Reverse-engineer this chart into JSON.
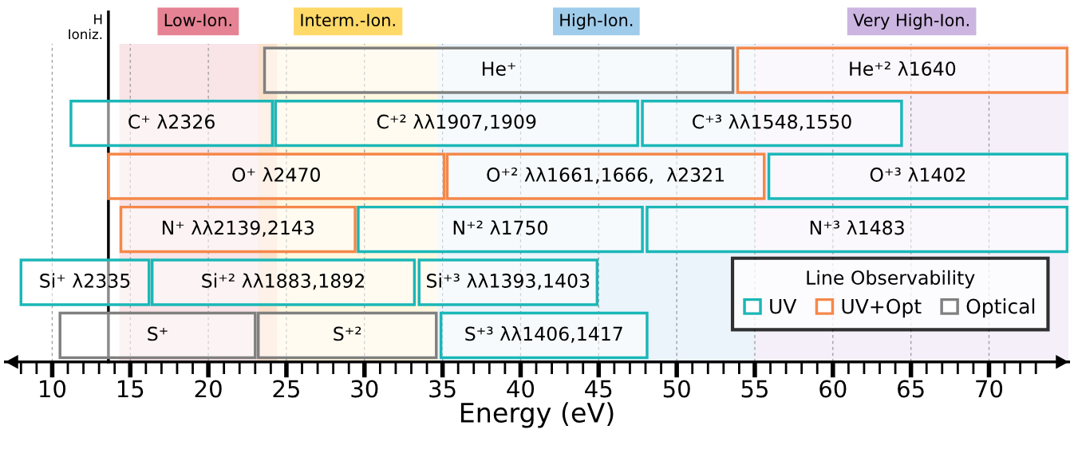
{
  "chart_data": {
    "type": "bar",
    "orientation": "horizontal",
    "xlabel": "Energy (eV)",
    "categories": [
      null,
      null,
      null,
      null,
      null,
      null
    ],
    "series": [
      {
        "name": "UV",
        "color": "#1bb7b7",
        "base": [
          null,
          11.2,
          null,
          null,
          8.0,
          34.9
        ],
        "values": [
          null,
          12.9,
          null,
          null,
          8.2,
          13.2
        ],
        "value_labels": [
          null,
          "C⁺ λ2326",
          null,
          null,
          "Si⁺ λ2335",
          "S⁺³ λλ1406,1417"
        ]
      },
      {
        "color": "#1bb7b7",
        "base": [
          null,
          24.3,
          55.9,
          29.6,
          16.4,
          null
        ],
        "values": [
          null,
          23.2,
          19.1,
          18.2,
          16.8,
          null
        ],
        "value_labels": [
          null,
          "C⁺² λλ1907,1909",
          "O⁺³ λ1402",
          "N⁺² λ1750",
          "Si⁺² λλ1883,1892",
          null
        ]
      },
      {
        "color": "#1bb7b7",
        "base": [
          null,
          47.8,
          null,
          48.1,
          33.5,
          null
        ],
        "values": [
          null,
          16.6,
          null,
          26.9,
          11.4,
          null
        ],
        "value_labels": [
          null,
          "C⁺³ λλ1548,1550",
          null,
          "N⁺³ λ1483",
          "Si⁺³ λλ1393,1403",
          null
        ]
      },
      {
        "name": "UV+Opt",
        "color": "#f5884a",
        "base": [
          53.9,
          null,
          13.6,
          14.4,
          null,
          null
        ],
        "values": [
          21.1,
          null,
          21.5,
          15.0,
          null,
          null
        ],
        "value_labels": [
          "He⁺² λ1640",
          null,
          "O⁺ λ2470",
          "N⁺ λλ2139,2143",
          null,
          null
        ]
      },
      {
        "color": "#f5884a",
        "base": [
          null,
          null,
          35.3,
          null,
          null,
          null
        ],
        "values": [
          null,
          null,
          20.3,
          null,
          null,
          null
        ],
        "value_labels": [
          null,
          null,
          "O⁺² λλ1661,1666,  λ2321",
          null,
          null,
          null
        ]
      },
      {
        "name": "Optical",
        "color": "#808080",
        "base": [
          23.6,
          null,
          null,
          null,
          null,
          10.5
        ],
        "values": [
          30.0,
          null,
          null,
          null,
          null,
          12.5
        ],
        "value_labels": [
          "He⁺",
          null,
          null,
          null,
          null,
          "S⁺"
        ]
      },
      {
        "color": "#808080",
        "base": [
          null,
          null,
          null,
          null,
          null,
          23.2
        ],
        "values": [
          null,
          null,
          null,
          null,
          null,
          11.4
        ],
        "value_labels": [
          null,
          null,
          null,
          null,
          null,
          "S⁺²"
        ]
      }
    ],
    "legend": "bottom right",
    "legend_title": "Line Observability",
    "xlim": [
      7,
      75.1
    ],
    "xticks": [
      {
        "value": 8,
        "label": null
      },
      {
        "value": 9,
        "label": null
      },
      10,
      {
        "value": 11,
        "label": null
      },
      {
        "value": 12,
        "label": null
      },
      {
        "value": 13,
        "label": null
      },
      {
        "value": 14,
        "label": null
      },
      15,
      {
        "value": 16,
        "label": null
      },
      {
        "value": 17,
        "label": null
      },
      {
        "value": 18,
        "label": null
      },
      {
        "value": 19,
        "label": null
      },
      20,
      {
        "value": 21,
        "label": null
      },
      {
        "value": 22,
        "label": null
      },
      {
        "value": 23,
        "label": null
      },
      {
        "value": 24,
        "label": null
      },
      25,
      {
        "value": 26,
        "label": null
      },
      {
        "value": 27,
        "label": null
      },
      {
        "value": 28,
        "label": null
      },
      {
        "value": 29,
        "label": null
      },
      30,
      {
        "value": 31,
        "label": null
      },
      {
        "value": 32,
        "label": null
      },
      {
        "value": 33,
        "label": null
      },
      {
        "value": 34,
        "label": null
      },
      35,
      {
        "value": 36,
        "label": null
      },
      {
        "value": 37,
        "label": null
      },
      {
        "value": 38,
        "label": null
      },
      {
        "value": 39,
        "label": null
      },
      40,
      {
        "value": 41,
        "label": null
      },
      {
        "value": 42,
        "label": null
      },
      {
        "value": 43,
        "label": null
      },
      {
        "value": 44,
        "label": null
      },
      45,
      {
        "value": 46,
        "label": null
      },
      {
        "value": 47,
        "label": null
      },
      {
        "value": 48,
        "label": null
      },
      {
        "value": 49,
        "label": null
      },
      50,
      {
        "value": 51,
        "label": null
      },
      {
        "value": 52,
        "label": null
      },
      {
        "value": 53,
        "label": null
      },
      {
        "value": 54,
        "label": null
      },
      55,
      {
        "value": 56,
        "label": null
      },
      {
        "value": 57,
        "label": null
      },
      {
        "value": 58,
        "label": null
      },
      {
        "value": 59,
        "label": null
      },
      60,
      {
        "value": 61,
        "label": null
      },
      {
        "value": 62,
        "label": null
      },
      {
        "value": 63,
        "label": null
      },
      {
        "value": 64,
        "label": null
      },
      65,
      {
        "value": 66,
        "label": null
      },
      {
        "value": 67,
        "label": null
      },
      {
        "value": 68,
        "label": null
      },
      {
        "value": 69,
        "label": null
      },
      70,
      {
        "value": 71,
        "label": null
      },
      {
        "value": 72,
        "label": null
      },
      {
        "value": 73,
        "label": null
      }
    ],
    "grid": "x",
    "ref_lines": [
      {
        "axis": "x",
        "value": 13.6,
        "label": "H\nIoniz.",
        "color": "#000000",
        "line_style": "solid"
      }
    ],
    "bands": [
      {
        "axis": "x",
        "from": 14.3,
        "to": 24.4,
        "label": "Low-Ion.",
        "color": "#e06c80"
      },
      {
        "axis": "x",
        "from": 23.2,
        "to": 34.7,
        "label": "Interm.-Ion.",
        "color": "#ffd24d"
      },
      {
        "axis": "x",
        "from": 34.7,
        "to": 55.0,
        "label": "High-Ion.",
        "color": "#8fc3e8"
      },
      {
        "axis": "x",
        "from": 55.0,
        "to": 75.1,
        "label": "Very High-Ion.",
        "color": "#c3a8dc"
      }
    ]
  }
}
